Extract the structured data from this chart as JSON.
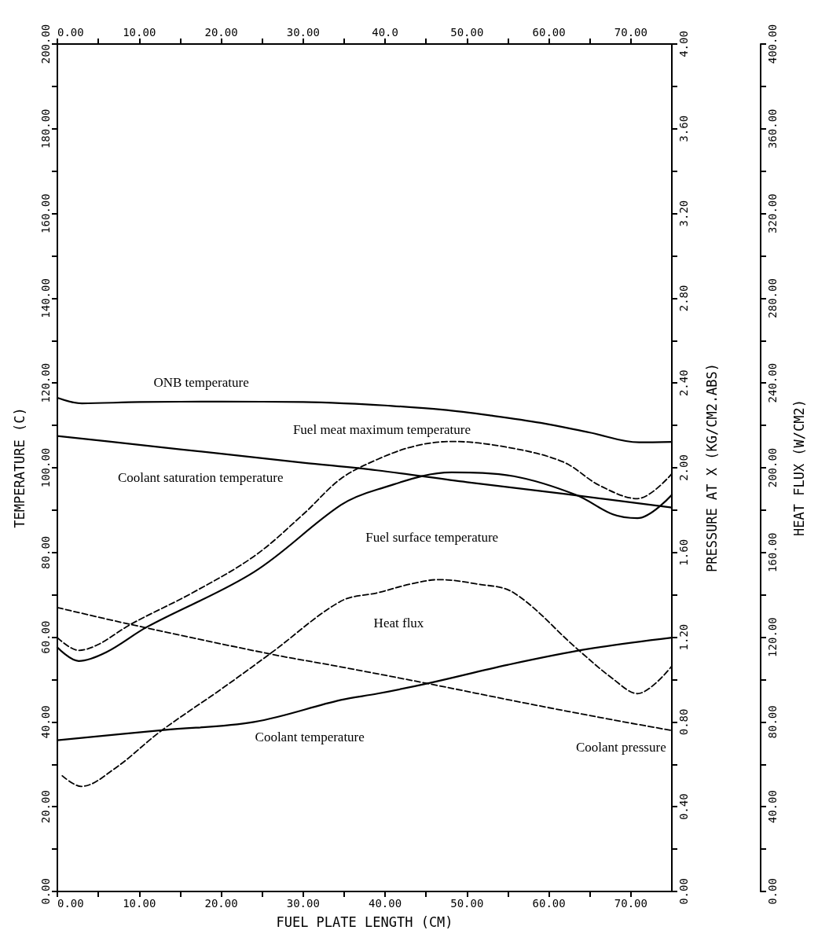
{
  "chart_data": {
    "type": "line",
    "xlabel": "FUEL PLATE LENGTH (CM)",
    "ylabel": "TEMPERATURE (C)",
    "y2label": "PRESSURE AT X (KG/CM2.ABS)",
    "y3label": "HEAT FLUX (W/CM2)",
    "xlim": [
      0,
      75
    ],
    "xticks": [
      {
        "value": 0,
        "label": "0.00"
      },
      {
        "value": 5,
        "label": null
      },
      {
        "value": 10,
        "label": "10.00"
      },
      {
        "value": 15,
        "label": null
      },
      {
        "value": 20,
        "label": "20.00"
      },
      {
        "value": 25,
        "label": null
      },
      {
        "value": 30,
        "label": "30.00"
      },
      {
        "value": 35,
        "label": null
      },
      {
        "value": 40,
        "label": "40.00"
      },
      {
        "value": 45,
        "label": null
      },
      {
        "value": 50,
        "label": "50.00"
      },
      {
        "value": 55,
        "label": null
      },
      {
        "value": 60,
        "label": "60.00"
      },
      {
        "value": 65,
        "label": null
      },
      {
        "value": 70,
        "label": "70.00"
      }
    ],
    "x2lim": [
      0,
      75
    ],
    "x2ticks": [
      {
        "value": 0,
        "label": "0.00"
      },
      {
        "value": 5,
        "label": null
      },
      {
        "value": 10,
        "label": "10.00"
      },
      {
        "value": 15,
        "label": null
      },
      {
        "value": 20,
        "label": "20.00"
      },
      {
        "value": 25,
        "label": null
      },
      {
        "value": 30,
        "label": "30.00"
      },
      {
        "value": 35,
        "label": null
      },
      {
        "value": 40,
        "label": "40.0"
      },
      {
        "value": 45,
        "label": null
      },
      {
        "value": 50,
        "label": "50.00"
      },
      {
        "value": 55,
        "label": null
      },
      {
        "value": 60,
        "label": "60.00"
      },
      {
        "value": 65,
        "label": null
      },
      {
        "value": 70,
        "label": "70.00"
      }
    ],
    "ylim": [
      0,
      200
    ],
    "yticks": [
      {
        "value": 0,
        "label": "0.00"
      },
      {
        "value": 10,
        "label": null
      },
      {
        "value": 20,
        "label": "20.00"
      },
      {
        "value": 30,
        "label": null
      },
      {
        "value": 40,
        "label": "40.00"
      },
      {
        "value": 50,
        "label": null
      },
      {
        "value": 60,
        "label": "60.00"
      },
      {
        "value": 70,
        "label": null
      },
      {
        "value": 80,
        "label": "80.00"
      },
      {
        "value": 90,
        "label": null
      },
      {
        "value": 100,
        "label": "100.00"
      },
      {
        "value": 110,
        "label": null
      },
      {
        "value": 120,
        "label": "120.00"
      },
      {
        "value": 130,
        "label": null
      },
      {
        "value": 140,
        "label": "140.00"
      },
      {
        "value": 150,
        "label": null
      },
      {
        "value": 160,
        "label": "160.00"
      },
      {
        "value": 170,
        "label": null
      },
      {
        "value": 180,
        "label": "180.00"
      },
      {
        "value": 190,
        "label": null
      },
      {
        "value": 200,
        "label": "200.00"
      }
    ],
    "y2lim": [
      0,
      4
    ],
    "y2ticks": [
      {
        "value": 0,
        "label": "0.00"
      },
      {
        "value": 0.2,
        "label": null
      },
      {
        "value": 0.4,
        "label": "0.40"
      },
      {
        "value": 0.6,
        "label": null
      },
      {
        "value": 0.8,
        "label": "0.80"
      },
      {
        "value": 1.0,
        "label": null
      },
      {
        "value": 1.2,
        "label": "1.20"
      },
      {
        "value": 1.4,
        "label": null
      },
      {
        "value": 1.6,
        "label": "1.60"
      },
      {
        "value": 1.8,
        "label": null
      },
      {
        "value": 2.0,
        "label": "2.00"
      },
      {
        "value": 2.2,
        "label": null
      },
      {
        "value": 2.4,
        "label": "2.40"
      },
      {
        "value": 2.6,
        "label": null
      },
      {
        "value": 2.8,
        "label": "2.80"
      },
      {
        "value": 3.0,
        "label": null
      },
      {
        "value": 3.2,
        "label": "3.20"
      },
      {
        "value": 3.4,
        "label": null
      },
      {
        "value": 3.6,
        "label": "3.60"
      },
      {
        "value": 3.8,
        "label": null
      },
      {
        "value": 4.0,
        "label": "4.00"
      }
    ],
    "y3lim": [
      0,
      400
    ],
    "y3ticks": [
      {
        "value": 0,
        "label": "0.00"
      },
      {
        "value": 20,
        "label": null
      },
      {
        "value": 40,
        "label": "40.00"
      },
      {
        "value": 60,
        "label": null
      },
      {
        "value": 80,
        "label": "80.00"
      },
      {
        "value": 100,
        "label": null
      },
      {
        "value": 120,
        "label": "120.00"
      },
      {
        "value": 140,
        "label": null
      },
      {
        "value": 160,
        "label": "160.00"
      },
      {
        "value": 180,
        "label": null
      },
      {
        "value": 200,
        "label": "200.00"
      },
      {
        "value": 220,
        "label": null
      },
      {
        "value": 240,
        "label": "240.00"
      },
      {
        "value": 260,
        "label": null
      },
      {
        "value": 280,
        "label": "280.00"
      },
      {
        "value": 300,
        "label": null
      },
      {
        "value": 320,
        "label": "320.00"
      },
      {
        "value": 340,
        "label": null
      },
      {
        "value": 360,
        "label": "360.00"
      },
      {
        "value": 380,
        "label": null
      },
      {
        "value": 400,
        "label": "400.00"
      }
    ],
    "series": [
      {
        "name": "ONB temperature",
        "color": "#000000",
        "line_style": "solid",
        "x": [
          0,
          3,
          10,
          20,
          30,
          35,
          40,
          47,
          53,
          59,
          65,
          71,
          75
        ],
        "values": [
          116.5,
          115.2,
          115.5,
          115.6,
          115.5,
          115.2,
          114.7,
          113.7,
          112.3,
          110.6,
          108.3,
          106,
          106.1
        ]
      },
      {
        "name": "Coolant saturation temperature",
        "color": "#000000",
        "line_style": "solid",
        "x": [
          0,
          10,
          20,
          30,
          39,
          50,
          62,
          75
        ],
        "values": [
          107.5,
          105.4,
          103.3,
          101.2,
          99.4,
          96.6,
          93.8,
          90.6
        ]
      },
      {
        "name": "Fuel meat maximum temperature",
        "color": "#000000",
        "line_style": "dashed",
        "x": [
          0,
          2.6,
          5,
          9,
          16.5,
          24,
          30,
          34.6,
          39.1,
          43.6,
          48.1,
          55,
          61.7,
          66.2,
          70.8,
          75
        ],
        "values": [
          59.9,
          56.9,
          58.3,
          63.1,
          70.5,
          79.1,
          89,
          97.4,
          102,
          105.1,
          106.2,
          104.8,
          101.4,
          95.8,
          92.7,
          98.6
        ]
      },
      {
        "name": "Fuel surface temperature",
        "color": "#000000",
        "line_style": "solid",
        "x": [
          0,
          2.6,
          6,
          11,
          24,
          34.6,
          39.1,
          48.1,
          55.7,
          63.3,
          67.8,
          70.8,
          75
        ],
        "values": [
          57.6,
          54.4,
          56.5,
          62.5,
          75.4,
          91.2,
          94.9,
          98.9,
          98,
          93.6,
          89,
          88.1,
          93.6
        ]
      },
      {
        "name": "Heat flux",
        "color": "#000000",
        "line_style": "dashed",
        "axis": "y3",
        "x": [
          0.6,
          2.9,
          7,
          12.6,
          20,
          26.1,
          34.6,
          39.1,
          43,
          46.6,
          51.1,
          55.7,
          63.3,
          67.8,
          70.8,
          75
        ],
        "values": [
          54.6,
          49.6,
          58,
          75.6,
          95.5,
          112.6,
          137,
          141,
          145,
          147.2,
          145.2,
          141,
          115,
          100.4,
          93.4,
          106.4
        ]
      },
      {
        "name": "Coolant pressure",
        "color": "#000000",
        "line_style": "dashed",
        "axis": "y2",
        "x": [
          0,
          9,
          26.1,
          34.6,
          45.4,
          57,
          67.8,
          75
        ],
        "values": [
          1.34,
          1.26,
          1.12,
          1.06,
          0.98,
          0.89,
          0.81,
          0.76
        ]
      },
      {
        "name": "Coolant temperature",
        "color": "#000000",
        "line_style": "solid",
        "x": [
          0,
          13,
          24,
          34.6,
          39.1,
          45.4,
          55,
          64.7,
          75
        ],
        "values": [
          35.7,
          38.1,
          40,
          45.2,
          46.7,
          49.2,
          53.5,
          57.2,
          59.9
        ]
      }
    ]
  }
}
